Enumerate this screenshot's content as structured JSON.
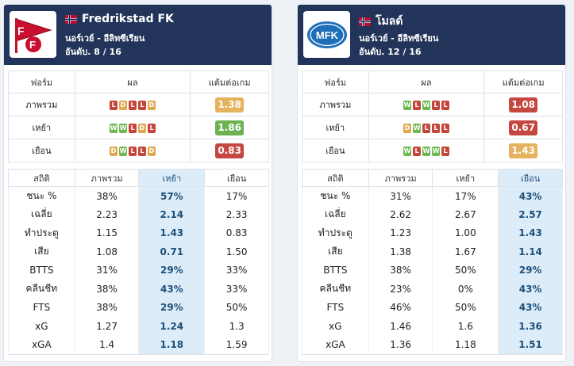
{
  "colors": {
    "header_bg": "#23345a",
    "win": "#6db94f",
    "draw": "#dfa74f",
    "loss": "#c5453b",
    "highlight": "#dcedf9"
  },
  "labels": {
    "form": "ฟอร์ม",
    "result": "ผล",
    "ppg": "แต้มต่อเกม",
    "overall": "ภาพรวม",
    "home": "เหย้า",
    "away": "เยือน",
    "stats": "สถิติ"
  },
  "teams": [
    {
      "name": "Fredrikstad FK",
      "league": "นอร์เวย์ - อีลิทซีเรียน",
      "rank": "อันดับ. 8 / 16",
      "flag_icon": "norway-flag-icon",
      "logo_icon": "fredrikstad-crest-icon",
      "form": [
        {
          "label": "ภาพรวม",
          "results": [
            "L",
            "D",
            "L",
            "L",
            "D"
          ],
          "ppg": "1.38",
          "ppg_color": "yellow"
        },
        {
          "label": "เหย้า",
          "results": [
            "W",
            "W",
            "L",
            "D",
            "L"
          ],
          "ppg": "1.86",
          "ppg_color": "green"
        },
        {
          "label": "เยือน",
          "results": [
            "D",
            "W",
            "L",
            "L",
            "D"
          ],
          "ppg": "0.83",
          "ppg_color": "red"
        }
      ],
      "highlight_col": 2,
      "stats": [
        {
          "label": "ชนะ %",
          "values": [
            "38%",
            "57%",
            "17%"
          ]
        },
        {
          "label": "เฉลี่ย",
          "values": [
            "2.23",
            "2.14",
            "2.33"
          ]
        },
        {
          "label": "ทำประตู",
          "values": [
            "1.15",
            "1.43",
            "0.83"
          ]
        },
        {
          "label": "เสีย",
          "values": [
            "1.08",
            "0.71",
            "1.50"
          ]
        },
        {
          "label": "BTTS",
          "values": [
            "31%",
            "29%",
            "33%"
          ]
        },
        {
          "label": "คลีนชีท",
          "values": [
            "38%",
            "43%",
            "33%"
          ]
        },
        {
          "label": "FTS",
          "values": [
            "38%",
            "29%",
            "50%"
          ]
        },
        {
          "label": "xG",
          "values": [
            "1.27",
            "1.24",
            "1.3"
          ]
        },
        {
          "label": "xGA",
          "values": [
            "1.4",
            "1.18",
            "1.59"
          ]
        }
      ]
    },
    {
      "name": "โมลด์",
      "league": "นอร์เวย์ - อีลิทซีเรียน",
      "rank": "อันดับ. 12 / 16",
      "flag_icon": "norway-flag-icon",
      "logo_icon": "molde-crest-icon",
      "logo_text": "MFK",
      "form": [
        {
          "label": "ภาพรวม",
          "results": [
            "W",
            "L",
            "W",
            "L",
            "L"
          ],
          "ppg": "1.08",
          "ppg_color": "red"
        },
        {
          "label": "เหย้า",
          "results": [
            "D",
            "W",
            "L",
            "L",
            "L"
          ],
          "ppg": "0.67",
          "ppg_color": "red"
        },
        {
          "label": "เยือน",
          "results": [
            "W",
            "L",
            "W",
            "W",
            "L"
          ],
          "ppg": "1.43",
          "ppg_color": "yellow"
        }
      ],
      "highlight_col": 3,
      "stats": [
        {
          "label": "ชนะ %",
          "values": [
            "31%",
            "17%",
            "43%"
          ]
        },
        {
          "label": "เฉลี่ย",
          "values": [
            "2.62",
            "2.67",
            "2.57"
          ]
        },
        {
          "label": "ทำประตู",
          "values": [
            "1.23",
            "1.00",
            "1.43"
          ]
        },
        {
          "label": "เสีย",
          "values": [
            "1.38",
            "1.67",
            "1.14"
          ]
        },
        {
          "label": "BTTS",
          "values": [
            "38%",
            "50%",
            "29%"
          ]
        },
        {
          "label": "คลีนชีท",
          "values": [
            "23%",
            "0%",
            "43%"
          ]
        },
        {
          "label": "FTS",
          "values": [
            "46%",
            "50%",
            "43%"
          ]
        },
        {
          "label": "xG",
          "values": [
            "1.46",
            "1.6",
            "1.36"
          ]
        },
        {
          "label": "xGA",
          "values": [
            "1.36",
            "1.18",
            "1.51"
          ]
        }
      ]
    }
  ]
}
